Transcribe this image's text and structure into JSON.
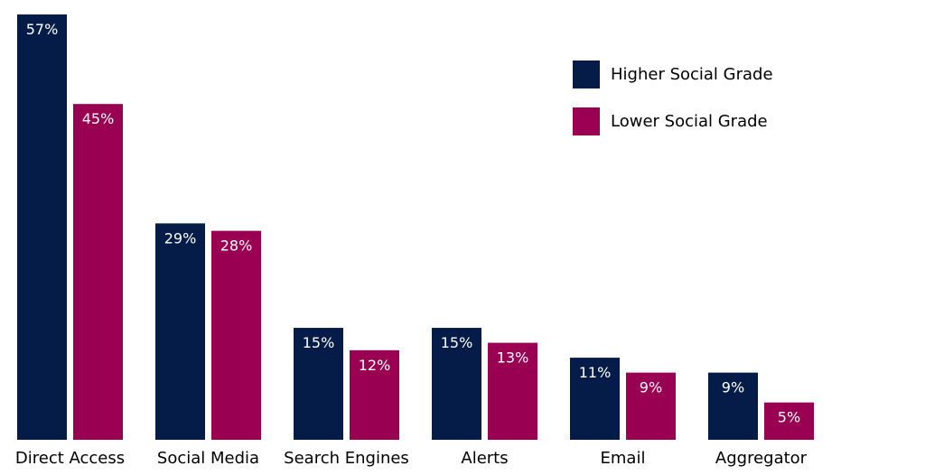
{
  "chart_data": {
    "type": "bar",
    "title": "",
    "xlabel": "",
    "ylabel": "",
    "ylim": [
      0,
      57
    ],
    "grid": false,
    "legend_position": "top-right",
    "categories": [
      "Direct Access",
      "Social Media",
      "Search Engines",
      "Alerts",
      "Email",
      "Aggregator"
    ],
    "series": [
      {
        "name": "Higher Social Grade",
        "color": "#051c48",
        "values": [
          57,
          29,
          15,
          15,
          11,
          9
        ],
        "labels": [
          "57%",
          "29%",
          "15%",
          "15%",
          "11%",
          "9%"
        ]
      },
      {
        "name": "Lower Social Grade",
        "color": "#990052",
        "values": [
          45,
          28,
          12,
          13,
          9,
          5
        ],
        "labels": [
          "45%",
          "28%",
          "12%",
          "13%",
          "9%",
          "5%"
        ]
      }
    ]
  }
}
